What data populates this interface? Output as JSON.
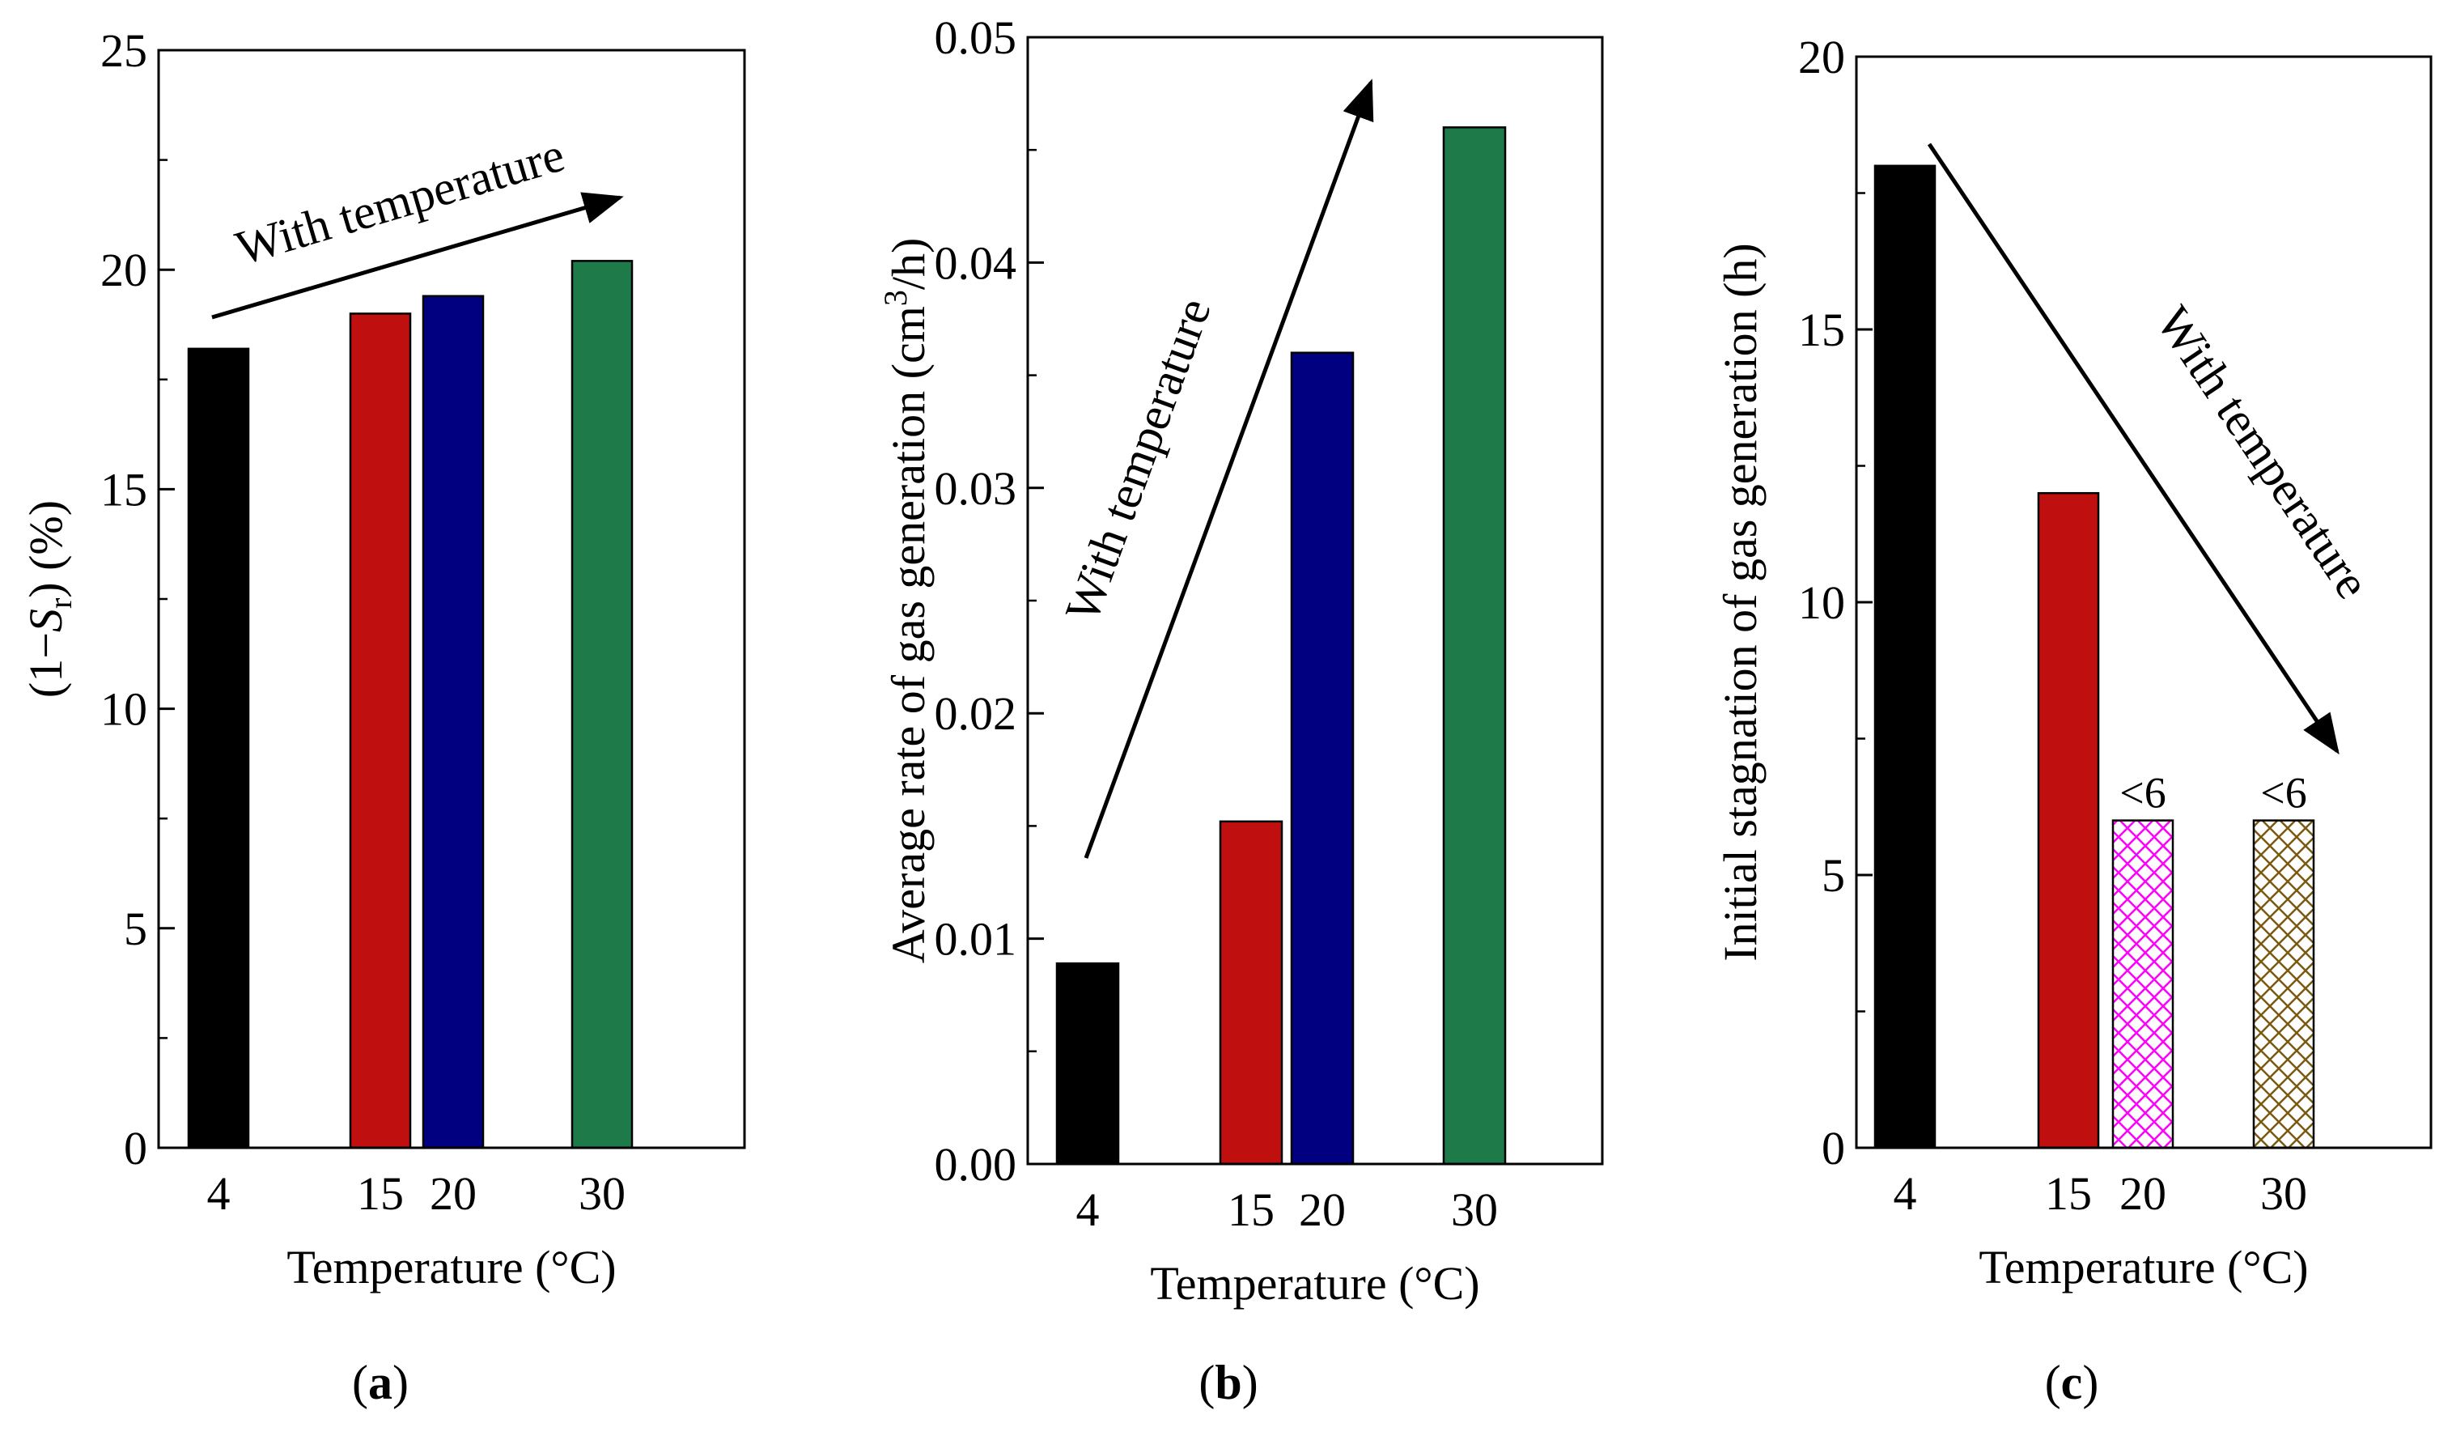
{
  "chart_data": [
    {
      "type": "bar",
      "panel": "(a)",
      "panel_letter": "a",
      "categories": [
        "4",
        "15",
        "20",
        "30"
      ],
      "x_numeric": [
        4,
        15,
        20,
        30
      ],
      "values": [
        18.2,
        19.0,
        19.4,
        20.2
      ],
      "colors": [
        "#000000",
        "#c00f0f",
        "#000080",
        "#1f7a4a"
      ],
      "patterns": [
        "solid",
        "solid",
        "solid",
        "solid"
      ],
      "xlabel": "Temperature (°C)",
      "ylabel": "(1−Sr) (%)",
      "ylabel_parts": {
        "pre": "(1−",
        "var": "S",
        "sub": "r",
        "post": ") (%)"
      },
      "ylim": [
        0,
        25
      ],
      "yticks": [
        "0",
        "5",
        "10",
        "15",
        "20",
        "25"
      ],
      "annotation": {
        "text": "With temperature",
        "trend": "increasing"
      }
    },
    {
      "type": "bar",
      "panel": "(b)",
      "panel_letter": "b",
      "categories": [
        "4",
        "15",
        "20",
        "30"
      ],
      "x_numeric": [
        4,
        15,
        20,
        30
      ],
      "values": [
        0.0089,
        0.0152,
        0.036,
        0.046
      ],
      "colors": [
        "#000000",
        "#c00f0f",
        "#000080",
        "#1f7a4a"
      ],
      "patterns": [
        "solid",
        "solid",
        "solid",
        "solid"
      ],
      "xlabel": "Temperature (°C)",
      "ylabel": "Average rate of gas generation (cm3/h)",
      "ylabel_parts": {
        "pre": "Average rate of gas generation (cm",
        "sup": "3",
        "post": "/h)"
      },
      "ylim": [
        0,
        0.05
      ],
      "yticks": [
        "0.00",
        "0.01",
        "0.02",
        "0.03",
        "0.04",
        "0.05"
      ],
      "annotation": {
        "text": "With temperature",
        "trend": "increasing"
      }
    },
    {
      "type": "bar",
      "panel": "(c)",
      "panel_letter": "c",
      "categories": [
        "4",
        "15",
        "20",
        "30"
      ],
      "x_numeric": [
        4,
        15,
        20,
        30
      ],
      "values": [
        18,
        12,
        6,
        6
      ],
      "bar_labels": [
        "",
        "",
        "<6",
        "<6"
      ],
      "colors": [
        "#000000",
        "#c00f0f",
        "#ff00ff",
        "#7a5a10"
      ],
      "patterns": [
        "solid",
        "solid",
        "crosshatch",
        "crosshatch"
      ],
      "xlabel": "Temperature (°C)",
      "ylabel": "Initial stagnation of gas generation (h)",
      "ylim": [
        0,
        20
      ],
      "yticks": [
        "0",
        "5",
        "10",
        "15",
        "20"
      ],
      "annotation": {
        "text": "With temperature",
        "trend": "decreasing"
      }
    }
  ]
}
